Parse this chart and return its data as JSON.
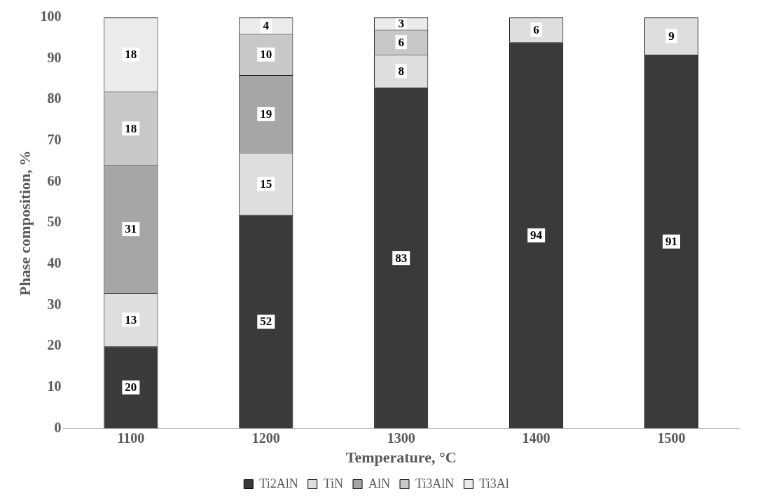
{
  "chart_data": {
    "type": "bar",
    "stacked": true,
    "xlabel": "Temperature, °C",
    "ylabel": "Phase composition, %",
    "categories": [
      "1100",
      "1200",
      "1300",
      "1400",
      "1500"
    ],
    "series": [
      {
        "name": "Ti2AlN",
        "color": "#3a3a3a",
        "values": [
          20,
          52,
          83,
          94,
          91
        ]
      },
      {
        "name": "TiN",
        "color": "#dedede",
        "values": [
          13,
          15,
          8,
          6,
          9
        ]
      },
      {
        "name": "AlN",
        "color": "#a6a6a6",
        "values": [
          31,
          19,
          null,
          null,
          null
        ]
      },
      {
        "name": "Ti3AlN",
        "color": "#c8c8c8",
        "values": [
          18,
          10,
          6,
          null,
          null
        ]
      },
      {
        "name": "Ti3Al",
        "color": "#ebebeb",
        "values": [
          18,
          4,
          3,
          null,
          null
        ]
      }
    ],
    "ylim": [
      0,
      100
    ],
    "yticks": [
      0,
      10,
      20,
      30,
      40,
      50,
      60,
      70,
      80,
      90,
      100
    ],
    "grid": false,
    "legend": "bottom",
    "data_labels": true
  }
}
